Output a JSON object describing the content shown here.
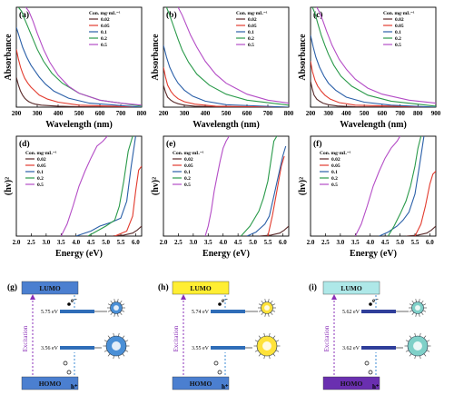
{
  "figure": {
    "legend_title": "Con. mg·mL⁻¹",
    "concentrations": [
      "0.02",
      "0.05",
      "0.1",
      "0.2",
      "0.5"
    ],
    "series_colors": [
      "#5a2b2b",
      "#e23b2e",
      "#2a5fa8",
      "#2a9a4a",
      "#b44cc6"
    ]
  },
  "chart_data": [
    {
      "id": "a",
      "panel_label": "(a)",
      "type": "line",
      "xlabel": "Wavelength (nm)",
      "ylabel": "Absorbance",
      "xlim": [
        200,
        800
      ],
      "ylim": [
        0,
        1
      ],
      "xticks": [
        "200",
        "300",
        "400",
        "500",
        "600",
        "700",
        "800"
      ],
      "series": [
        {
          "name": "0.02",
          "x": [
            200,
            210,
            220,
            230,
            240,
            250,
            260,
            275,
            290,
            320,
            400,
            500,
            800
          ],
          "y": [
            0.3,
            0.22,
            0.16,
            0.12,
            0.09,
            0.07,
            0.055,
            0.04,
            0.03,
            0.02,
            0.01,
            0.005,
            0.0
          ]
        },
        {
          "name": "0.05",
          "x": [
            200,
            210,
            220,
            230,
            240,
            255,
            270,
            290,
            310,
            350,
            400,
            500,
            800
          ],
          "y": [
            0.58,
            0.48,
            0.4,
            0.34,
            0.29,
            0.24,
            0.2,
            0.16,
            0.12,
            0.08,
            0.05,
            0.02,
            0.0
          ]
        },
        {
          "name": "0.1",
          "x": [
            200,
            215,
            230,
            250,
            270,
            290,
            310,
            340,
            380,
            450,
            550,
            800
          ],
          "y": [
            0.8,
            0.7,
            0.6,
            0.5,
            0.42,
            0.36,
            0.3,
            0.23,
            0.16,
            0.09,
            0.04,
            0.0
          ]
        },
        {
          "name": "0.2",
          "x": [
            210,
            225,
            240,
            260,
            280,
            300,
            330,
            370,
            420,
            500,
            600,
            800
          ],
          "y": [
            1.0,
            0.96,
            0.88,
            0.78,
            0.68,
            0.58,
            0.46,
            0.34,
            0.24,
            0.14,
            0.07,
            0.01
          ]
        },
        {
          "name": "0.5",
          "x": [
            245,
            260,
            280,
            300,
            330,
            360,
            400,
            450,
            500,
            600,
            700,
            800
          ],
          "y": [
            1.0,
            0.96,
            0.86,
            0.74,
            0.58,
            0.45,
            0.32,
            0.21,
            0.14,
            0.07,
            0.04,
            0.02
          ]
        }
      ]
    },
    {
      "id": "b",
      "panel_label": "(b)",
      "type": "line",
      "xlabel": "Wavelength (nm)",
      "ylabel": "Absorbance",
      "xlim": [
        200,
        800
      ],
      "ylim": [
        0,
        1
      ],
      "xticks": [
        "200",
        "300",
        "400",
        "500",
        "600",
        "700",
        "800"
      ],
      "series": [
        {
          "name": "0.02",
          "x": [
            200,
            210,
            220,
            235,
            250,
            270,
            300,
            350,
            450,
            800
          ],
          "y": [
            0.22,
            0.15,
            0.1,
            0.07,
            0.05,
            0.035,
            0.02,
            0.01,
            0.004,
            0.0
          ]
        },
        {
          "name": "0.05",
          "x": [
            200,
            210,
            220,
            235,
            250,
            270,
            300,
            350,
            450,
            800
          ],
          "y": [
            0.4,
            0.3,
            0.22,
            0.16,
            0.12,
            0.085,
            0.055,
            0.03,
            0.01,
            0.0
          ]
        },
        {
          "name": "0.1",
          "x": [
            200,
            215,
            230,
            250,
            270,
            300,
            340,
            400,
            500,
            800
          ],
          "y": [
            0.62,
            0.5,
            0.4,
            0.31,
            0.24,
            0.17,
            0.11,
            0.06,
            0.025,
            0.0
          ]
        },
        {
          "name": "0.2",
          "x": [
            215,
            230,
            250,
            270,
            290,
            320,
            360,
            420,
            500,
            600,
            800
          ],
          "y": [
            1.0,
            0.92,
            0.8,
            0.68,
            0.57,
            0.45,
            0.33,
            0.22,
            0.13,
            0.07,
            0.02
          ]
        },
        {
          "name": "0.5",
          "x": [
            270,
            290,
            310,
            330,
            360,
            400,
            450,
            500,
            600,
            700,
            800
          ],
          "y": [
            1.0,
            0.92,
            0.82,
            0.72,
            0.6,
            0.46,
            0.33,
            0.24,
            0.13,
            0.07,
            0.04
          ]
        }
      ]
    },
    {
      "id": "c",
      "panel_label": "(c)",
      "type": "line",
      "xlabel": "Wavelength (nm)",
      "ylabel": "Absorbance",
      "xlim": [
        200,
        900
      ],
      "ylim": [
        0,
        1
      ],
      "xticks": [
        "200",
        "300",
        "400",
        "500",
        "600",
        "700",
        "800",
        "900"
      ],
      "series": [
        {
          "name": "0.02",
          "x": [
            200,
            210,
            220,
            235,
            250,
            270,
            300,
            350,
            450,
            900
          ],
          "y": [
            0.26,
            0.18,
            0.12,
            0.08,
            0.06,
            0.04,
            0.025,
            0.012,
            0.005,
            0.0
          ]
        },
        {
          "name": "0.05",
          "x": [
            200,
            210,
            225,
            240,
            260,
            280,
            310,
            360,
            450,
            900
          ],
          "y": [
            0.46,
            0.36,
            0.27,
            0.21,
            0.16,
            0.12,
            0.08,
            0.045,
            0.02,
            0.0
          ]
        },
        {
          "name": "0.1",
          "x": [
            200,
            215,
            230,
            250,
            275,
            300,
            340,
            400,
            500,
            650,
            900
          ],
          "y": [
            0.72,
            0.6,
            0.5,
            0.4,
            0.31,
            0.24,
            0.17,
            0.1,
            0.05,
            0.02,
            0.0
          ]
        },
        {
          "name": "0.2",
          "x": [
            210,
            225,
            240,
            260,
            280,
            300,
            330,
            370,
            430,
            520,
            650,
            900
          ],
          "y": [
            1.0,
            0.94,
            0.84,
            0.72,
            0.62,
            0.53,
            0.42,
            0.31,
            0.21,
            0.12,
            0.06,
            0.01
          ]
        },
        {
          "name": "0.5",
          "x": [
            235,
            250,
            270,
            290,
            320,
            360,
            400,
            450,
            520,
            600,
            750,
            900
          ],
          "y": [
            1.0,
            0.95,
            0.86,
            0.76,
            0.62,
            0.48,
            0.38,
            0.28,
            0.19,
            0.13,
            0.07,
            0.04
          ]
        }
      ]
    },
    {
      "id": "d",
      "panel_label": "(d)",
      "type": "line",
      "xlabel": "Energy (eV)",
      "ylabel": "(hv)²",
      "xlim": [
        2.0,
        6.2
      ],
      "ylim": [
        0,
        1
      ],
      "xticks": [
        "2.0",
        "2.5",
        "3.0",
        "3.5",
        "4.0",
        "4.5",
        "5.0",
        "5.5",
        "6.0"
      ],
      "series": [
        {
          "name": "0.02",
          "x": [
            5.2,
            5.6,
            5.9,
            6.05,
            6.2
          ],
          "y": [
            0.0,
            0.01,
            0.03,
            0.06,
            0.1
          ]
        },
        {
          "name": "0.05",
          "x": [
            5.3,
            5.7,
            5.9,
            6.0,
            6.1,
            6.2
          ],
          "y": [
            0.0,
            0.05,
            0.2,
            0.45,
            0.66,
            0.7
          ]
        },
        {
          "name": "0.1",
          "x": [
            4.0,
            4.5,
            4.8,
            5.0,
            5.2,
            5.5,
            5.7,
            5.85,
            6.0
          ],
          "y": [
            0.0,
            0.05,
            0.1,
            0.12,
            0.14,
            0.18,
            0.35,
            0.7,
            1.0
          ]
        },
        {
          "name": "0.2",
          "x": [
            4.4,
            4.7,
            5.0,
            5.3,
            5.45,
            5.6,
            5.75,
            5.9
          ],
          "y": [
            0.0,
            0.05,
            0.1,
            0.16,
            0.3,
            0.55,
            0.85,
            1.0
          ]
        },
        {
          "name": "0.5",
          "x": [
            3.5,
            3.7,
            3.9,
            4.1,
            4.3,
            4.5,
            4.7,
            4.9,
            5.05
          ],
          "y": [
            0.0,
            0.12,
            0.3,
            0.5,
            0.65,
            0.78,
            0.9,
            0.95,
            1.0
          ]
        }
      ]
    },
    {
      "id": "e",
      "panel_label": "(e)",
      "type": "line",
      "xlabel": "Energy (eV)",
      "ylabel": "(hv)²",
      "xlim": [
        2.0,
        6.2
      ],
      "ylim": [
        0,
        1
      ],
      "xticks": [
        "2.0",
        "2.5",
        "3.0",
        "3.5",
        "4.0",
        "4.5",
        "5.0",
        "5.5",
        "6.0"
      ],
      "series": [
        {
          "name": "0.02",
          "x": [
            5.2,
            5.6,
            5.9,
            6.05,
            6.2
          ],
          "y": [
            0.0,
            0.01,
            0.03,
            0.06,
            0.1
          ]
        },
        {
          "name": "0.05",
          "x": [
            5.5,
            5.65,
            5.8,
            5.95,
            6.05
          ],
          "y": [
            0.0,
            0.2,
            0.45,
            0.7,
            0.8
          ]
        },
        {
          "name": "0.1",
          "x": [
            4.8,
            5.1,
            5.4,
            5.55,
            5.7,
            5.85,
            6.0,
            6.1
          ],
          "y": [
            0.0,
            0.04,
            0.12,
            0.2,
            0.4,
            0.6,
            0.8,
            0.9
          ]
        },
        {
          "name": "0.2",
          "x": [
            4.6,
            4.9,
            5.2,
            5.35,
            5.5,
            5.6,
            5.7,
            5.8
          ],
          "y": [
            0.0,
            0.1,
            0.25,
            0.38,
            0.55,
            0.75,
            0.95,
            1.0
          ]
        },
        {
          "name": "0.5",
          "x": [
            3.4,
            3.5,
            3.6,
            3.7,
            3.8,
            3.9,
            4.0,
            4.1,
            4.2
          ],
          "y": [
            0.0,
            0.1,
            0.25,
            0.45,
            0.6,
            0.75,
            0.88,
            0.95,
            1.0
          ]
        }
      ]
    },
    {
      "id": "f",
      "panel_label": "(f)",
      "type": "line",
      "xlabel": "Energy (eV)",
      "ylabel": "(hv)²",
      "xlim": [
        2.0,
        6.2
      ],
      "ylim": [
        0,
        1
      ],
      "xticks": [
        "2.0",
        "2.5",
        "3.0",
        "3.5",
        "4.0",
        "4.5",
        "5.0",
        "5.5",
        "6.0"
      ],
      "series": [
        {
          "name": "0.02",
          "x": [
            5.2,
            5.6,
            5.9,
            6.05,
            6.2
          ],
          "y": [
            0.0,
            0.01,
            0.03,
            0.06,
            0.1
          ]
        },
        {
          "name": "0.05",
          "x": [
            5.5,
            5.7,
            5.85,
            6.0,
            6.1,
            6.2
          ],
          "y": [
            0.0,
            0.12,
            0.3,
            0.52,
            0.62,
            0.65
          ]
        },
        {
          "name": "0.1",
          "x": [
            4.3,
            4.6,
            4.9,
            5.1,
            5.3,
            5.5,
            5.65,
            5.8
          ],
          "y": [
            0.0,
            0.04,
            0.1,
            0.16,
            0.24,
            0.42,
            0.7,
            1.0
          ]
        },
        {
          "name": "0.2",
          "x": [
            4.6,
            4.8,
            5.0,
            5.2,
            5.35,
            5.5,
            5.6,
            5.7
          ],
          "y": [
            0.0,
            0.1,
            0.22,
            0.35,
            0.5,
            0.7,
            0.88,
            1.0
          ]
        },
        {
          "name": "0.5",
          "x": [
            3.5,
            3.7,
            3.9,
            4.1,
            4.3,
            4.5,
            4.7,
            4.9,
            5.0
          ],
          "y": [
            0.0,
            0.12,
            0.3,
            0.5,
            0.65,
            0.78,
            0.88,
            0.95,
            1.0
          ]
        }
      ]
    }
  ],
  "schemes": [
    {
      "panel_label": "(g)",
      "lumo": "LUMO",
      "homo": "HOMO",
      "excitation": "Excitation",
      "level_high": "5.75 eV",
      "level_low": "3.56 eV",
      "electron": "e⁻",
      "hole": "h⁺",
      "theme_top": "#4b7fd0",
      "theme_bottom": "#4b7fd0",
      "band_color": "#2f6db8",
      "particle_color": "#4a8fd6"
    },
    {
      "panel_label": "(h)",
      "lumo": "LUMO",
      "homo": "HOMO",
      "excitation": "Excitation",
      "level_high": "5.74 eV",
      "level_low": "3.55 eV",
      "electron": "e⁻",
      "hole": "h⁺",
      "theme_top": "#ffee33",
      "theme_bottom": "#4b7fd0",
      "band_color": "#2f6db8",
      "particle_color": "#ffe23a"
    },
    {
      "panel_label": "(i)",
      "lumo": "LUMO",
      "homo": "HOMO",
      "excitation": "Excitation",
      "level_high": "5.62 eV",
      "level_low": "3.62 eV",
      "electron": "e⁻",
      "hole": "h⁺",
      "theme_top": "#aee8e8",
      "theme_bottom": "#6a2fb0",
      "band_color": "#2f3e9a",
      "particle_color": "#7fd0c8"
    }
  ]
}
